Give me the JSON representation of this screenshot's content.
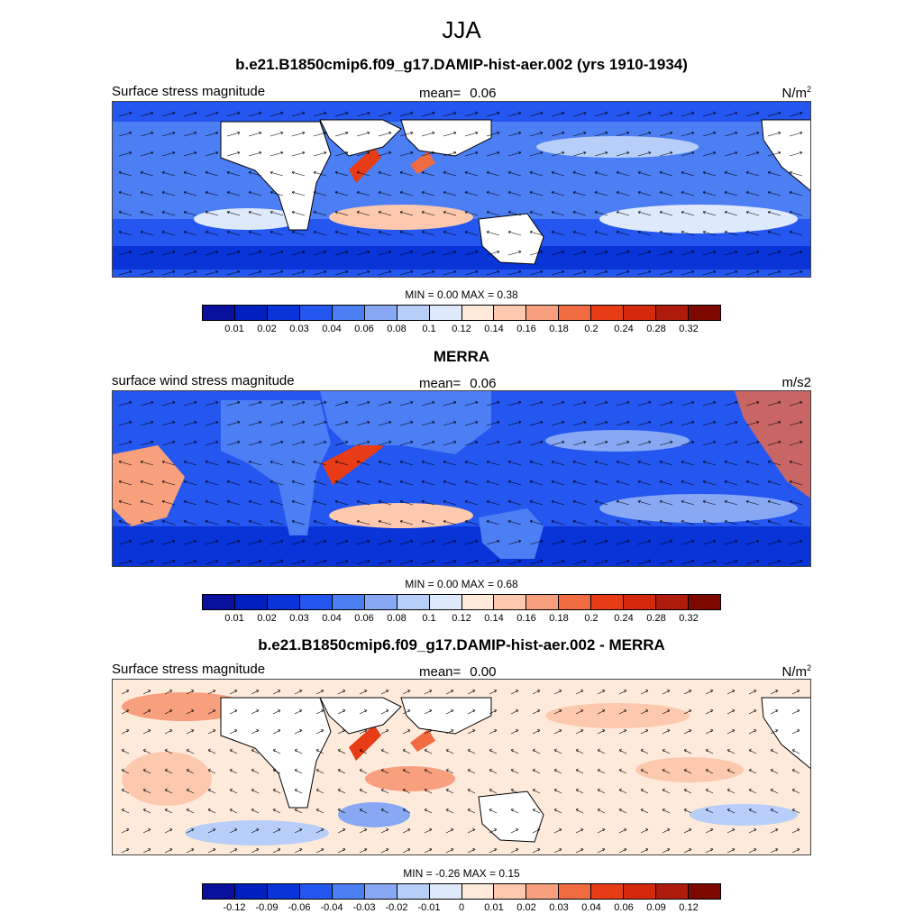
{
  "title": "JJA",
  "colors": {
    "bar": [
      "#08109c",
      "#0020c0",
      "#0834d8",
      "#2456f0",
      "#4c7ef4",
      "#88a8f4",
      "#b6cef8",
      "#deeafc",
      "#feeadb",
      "#fcc8ae",
      "#f8a07e",
      "#f06a42",
      "#e83c16",
      "#d42a0c",
      "#b01c0c",
      "#7c0800"
    ],
    "land": "#ffffff",
    "coast": "#000000"
  },
  "panels": [
    {
      "title": "b.e21.B1850cmip6.f09_g17.DAMIP-hist-aer.002 (yrs 1910-1934)",
      "variable": "Surface stress magnitude",
      "mean_label": "mean=",
      "mean_value": "0.06",
      "units": "N/m",
      "units_sup": "2",
      "minmax": "MIN =   0.00 MAX =   0.38",
      "ticks": [
        "0.01",
        "0.02",
        "0.03",
        "0.04",
        "0.06",
        "0.08",
        "0.1",
        "0.12",
        "0.14",
        "0.16",
        "0.18",
        "0.2",
        "0.24",
        "0.28",
        "0.32"
      ]
    },
    {
      "title": "MERRA",
      "variable": "surface wind stress magnitude",
      "mean_label": "mean=",
      "mean_value": "0.06",
      "units": "m/s2",
      "units_sup": "",
      "minmax": "MIN =   0.00 MAX =   0.68",
      "ticks": [
        "0.01",
        "0.02",
        "0.03",
        "0.04",
        "0.06",
        "0.08",
        "0.1",
        "0.12",
        "0.14",
        "0.16",
        "0.18",
        "0.2",
        "0.24",
        "0.28",
        "0.32"
      ]
    },
    {
      "title": "b.e21.B1850cmip6.f09_g17.DAMIP-hist-aer.002 - MERRA",
      "variable": "Surface stress magnitude",
      "mean_label": "mean=",
      "mean_value": "0.00",
      "units": "N/m",
      "units_sup": "2",
      "minmax": "MIN =  -0.26 MAX =   0.15",
      "ticks": [
        "-0.12",
        "-0.09",
        "-0.06",
        "-0.04",
        "-0.03",
        "-0.02",
        "-0.01",
        "0",
        "0.01",
        "0.02",
        "0.03",
        "0.04",
        "0.06",
        "0.09",
        "0.12"
      ]
    }
  ]
}
